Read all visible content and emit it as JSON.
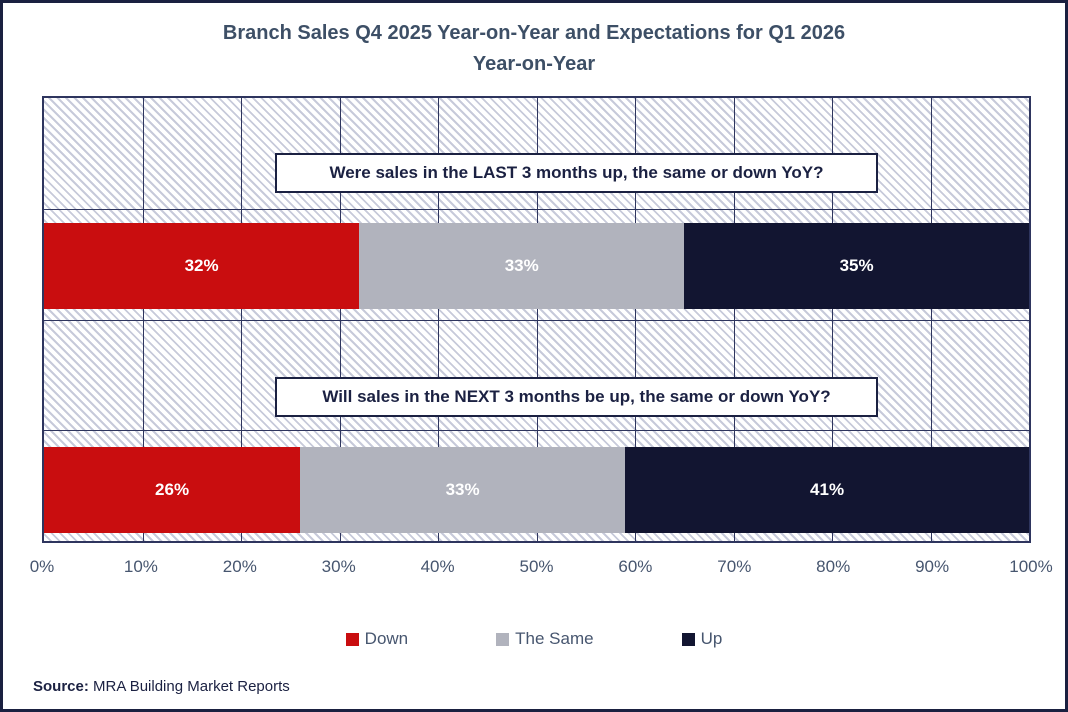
{
  "title": {
    "line1": "Branch Sales Q4 2025 Year-on-Year and Expectations for Q1 2026",
    "line2": "Year-on-Year"
  },
  "chart_data": {
    "type": "bar",
    "orientation": "horizontal-stacked",
    "title": "Branch Sales Q4 2025 Year-on-Year and Expectations for Q1 2026 Year-on-Year",
    "categories": [
      "Were sales in the LAST 3 months up, the same or down YoY?",
      "Will sales in the NEXT 3 months be up, the same or down YoY?"
    ],
    "series": [
      {
        "name": "Down",
        "color": "#c90d0f",
        "values": [
          32,
          26
        ]
      },
      {
        "name": "The Same",
        "color": "#b1b3bd",
        "values": [
          33,
          33
        ]
      },
      {
        "name": "Up",
        "color": "#121531",
        "values": [
          35,
          41
        ]
      }
    ],
    "value_suffix": "%",
    "xlim": [
      0,
      100
    ],
    "x_ticks": [
      "0%",
      "10%",
      "20%",
      "30%",
      "40%",
      "50%",
      "60%",
      "70%",
      "80%",
      "90%",
      "100%"
    ],
    "grid": true,
    "legend_position": "bottom",
    "plot_background": "diagonal-hatch"
  },
  "source": {
    "label": "Source:",
    "text": " MRA Building Market Reports"
  },
  "colors": {
    "frame_border": "#1a2040",
    "title_text": "#3d4f66",
    "axis_text": "#47566f",
    "gridline": "#2e355e",
    "hatch_line": "#c7cada",
    "annotation_border": "#1b2142",
    "bar_label": "#ffffff"
  }
}
